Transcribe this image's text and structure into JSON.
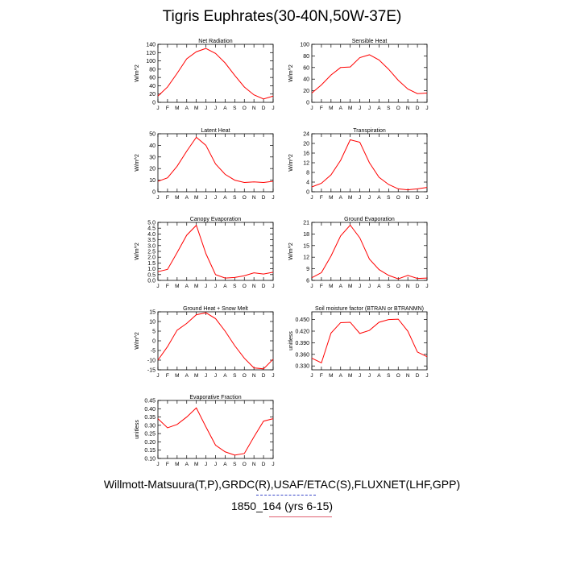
{
  "title": "Tigris Euphrates(30-40N,50W-37E)",
  "footer": {
    "line1": "Willmott-Matsuura(T,P),GRDC(R),USAF/ETAC(S),FLUXNET(LHF,GPP)",
    "line2": "1850_164 (yrs 6-15)"
  },
  "colors": {
    "line": "#ff0000",
    "axis": "#000000",
    "rule_blue": "#3a48c8",
    "rule_red": "#e06070"
  },
  "chart_data": [
    {
      "type": "line",
      "title": "Net Radiation",
      "ylabel": "W/m^2",
      "x": [
        "J",
        "F",
        "M",
        "A",
        "M",
        "J",
        "J",
        "A",
        "S",
        "O",
        "N",
        "D",
        "J"
      ],
      "ylim": [
        0,
        140
      ],
      "yticks": [
        "0",
        "20",
        "40",
        "60",
        "80",
        "100",
        "120",
        "140"
      ],
      "values": [
        15,
        37,
        70,
        105,
        122,
        130,
        118,
        95,
        65,
        37,
        18,
        8,
        15
      ]
    },
    {
      "type": "line",
      "title": "Sensible Heat",
      "ylabel": "W/m^2",
      "x": [
        "J",
        "F",
        "M",
        "A",
        "M",
        "J",
        "J",
        "A",
        "S",
        "O",
        "N",
        "D",
        "J"
      ],
      "ylim": [
        0,
        100
      ],
      "yticks": [
        "0",
        "20",
        "40",
        "60",
        "80",
        "100"
      ],
      "values": [
        16,
        30,
        47,
        60,
        61,
        77,
        82,
        73,
        57,
        38,
        23,
        15,
        16
      ]
    },
    {
      "type": "line",
      "title": "Latent Heat",
      "ylabel": "W/m^2",
      "x": [
        "J",
        "F",
        "M",
        "A",
        "M",
        "J",
        "J",
        "A",
        "S",
        "O",
        "N",
        "D",
        "J"
      ],
      "ylim": [
        0,
        50
      ],
      "yticks": [
        "0",
        "10",
        "20",
        "30",
        "40",
        "50"
      ],
      "values": [
        9,
        12,
        22,
        35,
        47,
        40,
        24,
        15,
        10,
        8,
        8.5,
        8,
        9
      ]
    },
    {
      "type": "line",
      "title": "Transpiration",
      "ylabel": "W/m^2",
      "x": [
        "J",
        "F",
        "M",
        "A",
        "M",
        "J",
        "J",
        "A",
        "S",
        "O",
        "N",
        "D",
        "J"
      ],
      "ylim": [
        0,
        24
      ],
      "yticks": [
        "0",
        "4",
        "8",
        "12",
        "16",
        "20",
        "24"
      ],
      "values": [
        2,
        3.5,
        7,
        13,
        21.5,
        20.5,
        12,
        6,
        3,
        1.2,
        0.8,
        1.2,
        1.8
      ]
    },
    {
      "type": "line",
      "title": "Canopy Evaporation",
      "ylabel": "W/m^2",
      "x": [
        "J",
        "F",
        "M",
        "A",
        "M",
        "J",
        "J",
        "A",
        "S",
        "O",
        "N",
        "D",
        "J"
      ],
      "ylim": [
        0,
        5
      ],
      "yticks": [
        "0.0",
        "0.5",
        "1.0",
        "1.5",
        "2.0",
        "2.5",
        "3.0",
        "3.5",
        "4.0",
        "4.5",
        "5.0"
      ],
      "values": [
        0.75,
        0.95,
        2.4,
        3.9,
        4.75,
        2.3,
        0.5,
        0.2,
        0.25,
        0.4,
        0.65,
        0.55,
        0.7
      ]
    },
    {
      "type": "line",
      "title": "Ground Evaporation",
      "ylabel": "W/m^2",
      "x": [
        "J",
        "F",
        "M",
        "A",
        "M",
        "J",
        "J",
        "A",
        "S",
        "O",
        "N",
        "D",
        "J"
      ],
      "ylim": [
        6,
        21
      ],
      "yticks": [
        "6",
        "9",
        "12",
        "15",
        "18",
        "21"
      ],
      "values": [
        6.7,
        8,
        12.3,
        17.5,
        20.3,
        17,
        11.5,
        8.8,
        7.3,
        6.4,
        7.3,
        6.5,
        6.6
      ]
    },
    {
      "type": "line",
      "title": "Ground Heat + Snow Melt",
      "ylabel": "W/m^2",
      "x": [
        "J",
        "F",
        "M",
        "A",
        "M",
        "J",
        "J",
        "A",
        "S",
        "O",
        "N",
        "D",
        "J"
      ],
      "ylim": [
        -15,
        15
      ],
      "yticks": [
        "-15",
        "-10",
        "-5",
        "0",
        "5",
        "10",
        "15"
      ],
      "values": [
        -10,
        -3,
        5.5,
        9,
        13.5,
        14.5,
        11.5,
        5,
        -2.5,
        -9,
        -14,
        -14.5,
        -9.5
      ]
    },
    {
      "type": "line",
      "title": "Soil moisture factor (BTRAN or BTRANMN)",
      "ylabel": "unitless",
      "x": [
        "J",
        "F",
        "M",
        "A",
        "M",
        "J",
        "J",
        "A",
        "S",
        "O",
        "N",
        "D",
        "J"
      ],
      "ylim": [
        0.32,
        0.47
      ],
      "yticks": [
        "0.330",
        "0.360",
        "0.390",
        "0.420",
        "0.450"
      ],
      "values": [
        0.35,
        0.338,
        0.415,
        0.442,
        0.443,
        0.414,
        0.422,
        0.443,
        0.45,
        0.451,
        0.42,
        0.366,
        0.354
      ]
    },
    {
      "type": "line",
      "title": "Evaporative Fraction",
      "ylabel": "unitless",
      "x": [
        "J",
        "F",
        "M",
        "A",
        "M",
        "J",
        "J",
        "A",
        "S",
        "O",
        "N",
        "D",
        "J"
      ],
      "ylim": [
        0.1,
        0.45
      ],
      "yticks": [
        "0.10",
        "0.15",
        "0.20",
        "0.25",
        "0.30",
        "0.35",
        "0.40",
        "0.45"
      ],
      "values": [
        0.34,
        0.285,
        0.305,
        0.35,
        0.405,
        0.29,
        0.18,
        0.14,
        0.12,
        0.13,
        0.23,
        0.325,
        0.34
      ]
    }
  ]
}
